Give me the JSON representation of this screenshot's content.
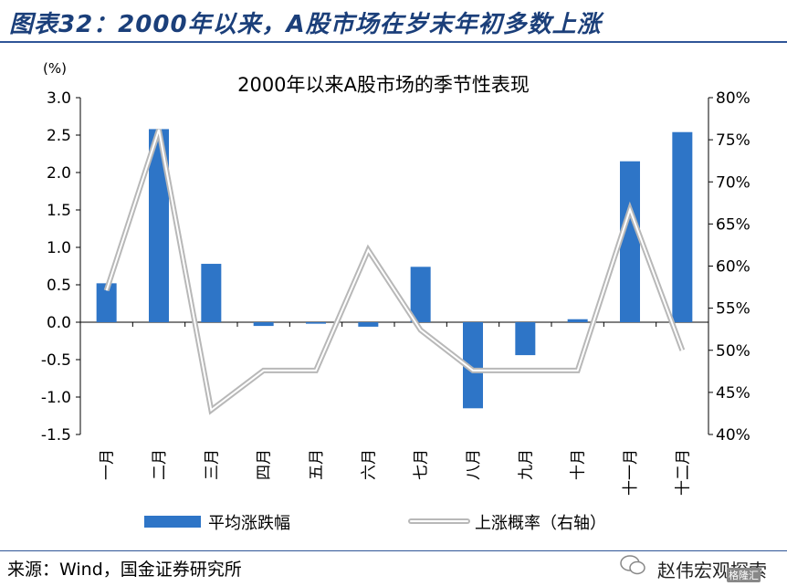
{
  "figure_title": "图表32：2000年以来，A股市场在岁末年初多数上涨",
  "source": "来源：Wind，国金证券研究所",
  "watermark": "赵伟宏观探索",
  "watermark_badge": "格隆汇",
  "colors": {
    "bar": "#2e75c7",
    "line": "#c0c0c0",
    "title": "#1b3f7a",
    "rule": "#2f5597"
  },
  "chart_data": {
    "type": "bar",
    "title": "2000年以来A股市场的季节性表现",
    "left_unit": "(%)",
    "categories": [
      "一月",
      "二月",
      "三月",
      "四月",
      "五月",
      "六月",
      "七月",
      "八月",
      "九月",
      "十月",
      "十一月",
      "十二月"
    ],
    "y_left": {
      "min": -1.5,
      "max": 3.0,
      "step": 0.5,
      "ticks": [
        "3.0",
        "2.5",
        "2.0",
        "1.5",
        "1.0",
        "0.5",
        "0.0",
        "-0.5",
        "-1.0",
        "-1.5"
      ]
    },
    "y_right": {
      "min": 40,
      "max": 80,
      "step": 5,
      "ticks": [
        "80%",
        "75%",
        "70%",
        "65%",
        "60%",
        "55%",
        "50%",
        "45%",
        "40%"
      ]
    },
    "series": [
      {
        "name": "平均涨跌幅",
        "type": "bar",
        "axis": "left",
        "values": [
          0.52,
          2.58,
          0.78,
          -0.05,
          -0.02,
          -0.06,
          0.74,
          -1.15,
          -0.44,
          0.04,
          2.15,
          2.54
        ]
      },
      {
        "name": "上涨概率（右轴）",
        "type": "line",
        "axis": "right",
        "values": [
          57.1,
          76.2,
          42.9,
          47.6,
          47.6,
          61.9,
          52.4,
          47.6,
          47.6,
          47.6,
          66.7,
          50.0
        ]
      }
    ],
    "legend": "bottom"
  }
}
